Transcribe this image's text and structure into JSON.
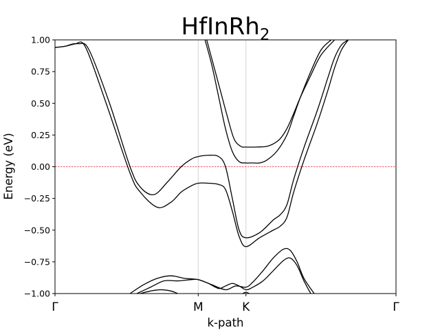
{
  "chart_data": {
    "type": "line",
    "title": "HfInRh",
    "title_subscript": "2",
    "xlabel": "k-path",
    "ylabel": "Energy (eV)",
    "ylim": [
      -1.0,
      1.0
    ],
    "xlim": [
      0,
      1
    ],
    "grid": false,
    "legend": "none",
    "x_ticks": [
      {
        "label": "Γ",
        "pos": 0
      },
      {
        "label": "M",
        "pos": 0.42
      },
      {
        "label": "K",
        "pos": 0.56
      },
      {
        "label": "Γ",
        "pos": 1
      }
    ],
    "y_ticks": [
      {
        "value": -1.0,
        "label": "−1.00"
      },
      {
        "value": -0.75,
        "label": "−0.75"
      },
      {
        "value": -0.5,
        "label": "−0.50"
      },
      {
        "value": -0.25,
        "label": "−0.25"
      },
      {
        "value": 0.0,
        "label": "0.00"
      },
      {
        "value": 0.25,
        "label": "0.25"
      },
      {
        "value": 0.5,
        "label": "0.50"
      },
      {
        "value": 0.75,
        "label": "0.75"
      },
      {
        "value": 1.0,
        "label": "1.00"
      }
    ],
    "fermi_level": {
      "energy": 0.0,
      "color": "#e8202a",
      "style": "dashed"
    },
    "vlines": [
      0.42,
      0.56
    ],
    "line_color": "#000000",
    "series": [
      {
        "x": [
          0,
          0.03,
          0.06,
          0.09,
          0.15,
          0.22,
          0.25,
          0.3,
          0.34,
          0.37,
          0.4,
          0.42,
          0.45,
          0.48,
          0.5,
          0.52,
          0.54,
          0.56,
          0.6,
          0.64,
          0.66,
          0.68,
          0.7,
          0.73,
          0.77,
          0.8,
          0.82,
          0.84,
          0.86
        ],
        "y": [
          0.94,
          0.95,
          0.97,
          0.94,
          0.5,
          -0.05,
          -0.2,
          -0.32,
          -0.28,
          -0.2,
          -0.15,
          -0.13,
          -0.13,
          -0.14,
          -0.18,
          -0.35,
          -0.55,
          -0.63,
          -0.56,
          -0.5,
          -0.47,
          -0.4,
          -0.2,
          0.05,
          0.35,
          0.6,
          0.78,
          0.92,
          1.0
        ]
      },
      {
        "x": [
          0,
          0.03,
          0.07,
          0.1,
          0.16,
          0.22,
          0.25,
          0.29,
          0.33,
          0.37,
          0.4,
          0.42,
          0.45,
          0.48,
          0.5,
          0.52,
          0.54,
          0.56,
          0.6,
          0.64,
          0.66,
          0.68,
          0.7,
          0.73,
          0.77,
          0.8,
          0.82,
          0.84,
          0.86
        ],
        "y": [
          0.94,
          0.95,
          0.97,
          0.92,
          0.5,
          0.0,
          -0.16,
          -0.22,
          -0.12,
          0.0,
          0.06,
          0.08,
          0.09,
          0.08,
          0.0,
          -0.25,
          -0.5,
          -0.56,
          -0.52,
          -0.42,
          -0.38,
          -0.3,
          -0.1,
          0.15,
          0.45,
          0.7,
          0.86,
          0.96,
          1.0
        ]
      },
      {
        "x": [
          0.44,
          0.46,
          0.48,
          0.5,
          0.52,
          0.54,
          0.56,
          0.58,
          0.6,
          0.62,
          0.65,
          0.68,
          0.7,
          0.72,
          0.75,
          0.78,
          0.81
        ],
        "y": [
          1.0,
          0.8,
          0.55,
          0.3,
          0.12,
          0.04,
          0.03,
          0.03,
          0.03,
          0.05,
          0.12,
          0.25,
          0.4,
          0.55,
          0.75,
          0.92,
          1.0
        ]
      },
      {
        "x": [
          0.445,
          0.465,
          0.485,
          0.505,
          0.525,
          0.545,
          0.56,
          0.59,
          0.62,
          0.64,
          0.66,
          0.68,
          0.7,
          0.72,
          0.75,
          0.78,
          0.82
        ],
        "y": [
          1.0,
          0.8,
          0.6,
          0.4,
          0.22,
          0.16,
          0.155,
          0.155,
          0.16,
          0.18,
          0.22,
          0.3,
          0.42,
          0.55,
          0.72,
          0.88,
          1.0
        ]
      },
      {
        "x": [
          0.22,
          0.26,
          0.3,
          0.34,
          0.38,
          0.42,
          0.46,
          0.5,
          0.53,
          0.56,
          0.58,
          0.61,
          0.64,
          0.67,
          0.69,
          0.71,
          0.73,
          0.76
        ],
        "y": [
          -1.0,
          -0.93,
          -0.88,
          -0.86,
          -0.88,
          -0.89,
          -0.93,
          -0.97,
          -0.94,
          -0.95,
          -0.91,
          -0.82,
          -0.72,
          -0.65,
          -0.66,
          -0.75,
          -0.88,
          -1.0
        ]
      },
      {
        "x": [
          0.24,
          0.28,
          0.32,
          0.36,
          0.4,
          0.42,
          0.45,
          0.48,
          0.5,
          0.52,
          0.54,
          0.56,
          0.58,
          0.61,
          0.64,
          0.67,
          0.69,
          0.71,
          0.73,
          0.75
        ],
        "y": [
          -1.0,
          -0.95,
          -0.9,
          -0.9,
          -0.89,
          -0.89,
          -0.92,
          -0.96,
          -0.94,
          -0.92,
          -0.94,
          -0.97,
          -0.95,
          -0.9,
          -0.82,
          -0.74,
          -0.72,
          -0.78,
          -0.9,
          -1.0
        ]
      },
      {
        "x": [
          0.25,
          0.28,
          0.31,
          0.34,
          0.36
        ],
        "y": [
          -1.0,
          -0.98,
          -0.97,
          -0.98,
          -1.0
        ]
      },
      {
        "x": [
          0.55,
          0.56,
          0.57
        ],
        "y": [
          -1.0,
          -0.99,
          -1.0
        ]
      }
    ]
  }
}
